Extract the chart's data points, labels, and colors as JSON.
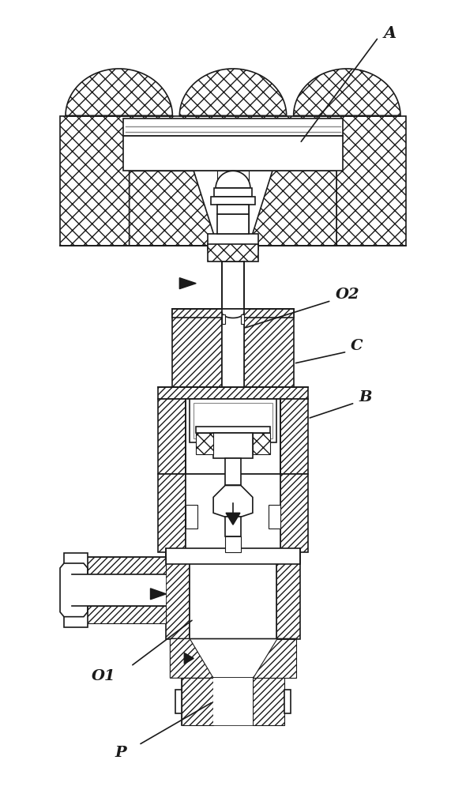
{
  "bg_color": "#ffffff",
  "line_color": "#1a1a1a",
  "label_A": "A",
  "label_O2": "O2",
  "label_C": "C",
  "label_B": "B",
  "label_O1": "O1",
  "label_P": "P",
  "fig_width": 5.9,
  "fig_height": 10.0,
  "dpi": 100
}
